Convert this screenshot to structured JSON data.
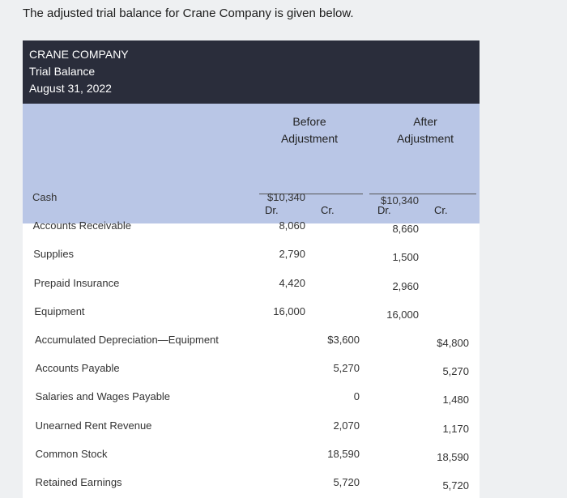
{
  "intro": "The adjusted trial balance for Crane Company is given below.",
  "header": {
    "company": "CRANE COMPANY",
    "title": "Trial Balance",
    "date": "August 31, 2022"
  },
  "columns": {
    "before_line1": "Before",
    "before_line2": "Adjustment",
    "after_line1": "After",
    "after_line2": "Adjustment",
    "dr": "Dr.",
    "cr": "Cr."
  },
  "rows": [
    {
      "account": "Cash",
      "before_dr": "$10,340",
      "before_cr": "",
      "after_dr": "$10,340",
      "after_cr": ""
    },
    {
      "account": "Accounts Receivable",
      "before_dr": "8,060",
      "before_cr": "",
      "after_dr": "8,660",
      "after_cr": ""
    },
    {
      "account": "Supplies",
      "before_dr": "2,790",
      "before_cr": "",
      "after_dr": "1,500",
      "after_cr": ""
    },
    {
      "account": "Prepaid Insurance",
      "before_dr": "4,420",
      "before_cr": "",
      "after_dr": "2,960",
      "after_cr": ""
    },
    {
      "account": "Equipment",
      "before_dr": "16,000",
      "before_cr": "",
      "after_dr": "16,000",
      "after_cr": ""
    },
    {
      "account": "Accumulated Depreciation—Equipment",
      "before_dr": "",
      "before_cr": "$3,600",
      "after_dr": "",
      "after_cr": "$4,800"
    },
    {
      "account": "Accounts Payable",
      "before_dr": "",
      "before_cr": "5,270",
      "after_dr": "",
      "after_cr": "5,270"
    },
    {
      "account": "Salaries and Wages Payable",
      "before_dr": "",
      "before_cr": "0",
      "after_dr": "",
      "after_cr": "1,480"
    },
    {
      "account": "Unearned Rent Revenue",
      "before_dr": "",
      "before_cr": "2,070",
      "after_dr": "",
      "after_cr": "1,170"
    },
    {
      "account": "Common Stock",
      "before_dr": "",
      "before_cr": "18,590",
      "after_dr": "",
      "after_cr": "18,590"
    },
    {
      "account": "Retained Earnings",
      "before_dr": "",
      "before_cr": "5,720",
      "after_dr": "",
      "after_cr": "5,720"
    }
  ]
}
